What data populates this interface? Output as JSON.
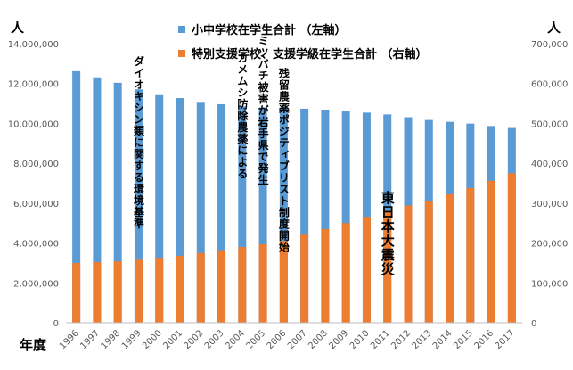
{
  "chart_data": {
    "type": "bar",
    "categories": [
      "1996",
      "1997",
      "1998",
      "1999",
      "2000",
      "2001",
      "2002",
      "2003",
      "2004",
      "2005",
      "2006",
      "2007",
      "2008",
      "2009",
      "2010",
      "2011",
      "2012",
      "2013",
      "2014",
      "2015",
      "2016",
      "2017"
    ],
    "series": [
      {
        "name": "小中学校在学生合計 （左軸）",
        "axis": "left",
        "color": "#5B9BD5",
        "values": [
          12620000,
          12310000,
          12040000,
          11710000,
          11460000,
          11270000,
          11080000,
          10960000,
          10860000,
          10800000,
          10790000,
          10740000,
          10690000,
          10610000,
          10540000,
          10450000,
          10310000,
          10170000,
          10080000,
          9990000,
          9870000,
          9770000
        ]
      },
      {
        "name": "特別支援学校、支援学級在学生合計 （右軸）",
        "axis": "right",
        "color": "#ED7D31",
        "values": [
          150000,
          152000,
          154000,
          158000,
          163000,
          168000,
          175000,
          182000,
          190000,
          197000,
          205000,
          221000,
          235000,
          250000,
          266000,
          281000,
          294000,
          306000,
          322000,
          338000,
          356000,
          375000
        ]
      }
    ],
    "left_axis": {
      "unit": "人",
      "min": 0,
      "max": 14000000,
      "ticks": [
        "0",
        "2,000,000",
        "4,000,000",
        "6,000,000",
        "8,000,000",
        "10,000,000",
        "12,000,000",
        "14,000,000"
      ]
    },
    "right_axis": {
      "unit": "人",
      "min": 0,
      "max": 700000,
      "ticks": [
        "0",
        "100,000",
        "200,000",
        "300,000",
        "400,000",
        "500,000",
        "600,000",
        "700,000"
      ]
    },
    "xlabel": "年度",
    "grid": false,
    "legend_placement": "top-center",
    "annotations": [
      {
        "category": "1999",
        "text": "ダイオキシン類に関する環境基準",
        "size": "normal"
      },
      {
        "category": "2004",
        "text": "カメムシ防除農薬による",
        "size": "normal"
      },
      {
        "category": "2005",
        "text": "ミツバチ被害が岩手県で発生",
        "size": "normal"
      },
      {
        "category": "2006",
        "text": "残留農薬ポジティブリスト制度開始",
        "size": "normal"
      },
      {
        "category": "2011",
        "text": "東日本大震災",
        "size": "large"
      }
    ]
  }
}
